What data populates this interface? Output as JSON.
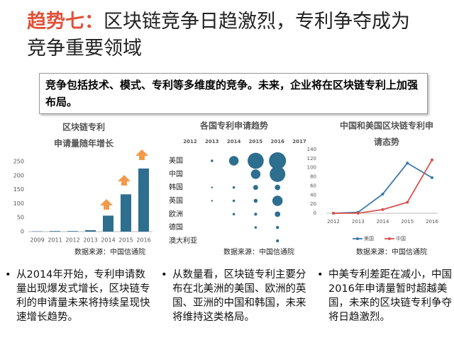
{
  "title_label": "趋势七：",
  "title": "区块链竞争日趋激烈，专利争夺成为竞争重要领域",
  "summary": "竞争包括技术、模式、专利等多维度的竞争。未来，企业将在区块链专利上加强布局。",
  "chart_data": [
    {
      "type": "bar",
      "title": [
        "区块链专利",
        "申请量随年增长"
      ],
      "categories": [
        "2009",
        "2011",
        "2012",
        "2013",
        "2014",
        "2015",
        "2016"
      ],
      "values": [
        1,
        2,
        2,
        5,
        57,
        133,
        225
      ],
      "color": "#2e6e8e",
      "ylim": [
        0,
        250
      ],
      "yticks": [
        0,
        50,
        100,
        150,
        200,
        250
      ],
      "source": "数据来源：中国信通院"
    },
    {
      "type": "bubble",
      "title": "各国专利申请趋势",
      "x": [
        2012,
        2013,
        2014,
        2015,
        2016
      ],
      "xlim": [
        2012,
        2017
      ],
      "xticks": [
        2012,
        2013,
        2014,
        2015,
        2016,
        2017
      ],
      "color": "#2e6e8e",
      "series": [
        {
          "name": "美国",
          "values": [
            null,
            2,
            30,
            85,
            95
          ]
        },
        {
          "name": "中国",
          "values": [
            null,
            null,
            null,
            30,
            80
          ]
        },
        {
          "name": "韩国",
          "values": [
            null,
            1,
            2,
            8,
            10
          ]
        },
        {
          "name": "英国",
          "values": [
            null,
            1,
            2,
            5,
            35
          ]
        },
        {
          "name": "欧洲",
          "values": [
            null,
            null,
            2,
            3,
            10
          ]
        },
        {
          "name": "德国",
          "values": [
            null,
            null,
            null,
            2,
            3
          ]
        },
        {
          "name": "澳大利亚",
          "values": [
            null,
            null,
            null,
            null,
            3
          ]
        }
      ],
      "source": "数据来源：中国信通院"
    },
    {
      "type": "line",
      "title": [
        "中国和美国区块链专利申",
        "请态势"
      ],
      "x": [
        2012,
        2013,
        2014,
        2015,
        2016
      ],
      "xlim": [
        2012,
        2016
      ],
      "xticks": [
        2012,
        2013,
        2014,
        2015,
        2016
      ],
      "ylim": [
        0,
        140
      ],
      "yticks": [
        0,
        20,
        40,
        60,
        80,
        100,
        120,
        140
      ],
      "series": [
        {
          "name": "美国",
          "color": "#3a78a8",
          "values": [
            0,
            2,
            42,
            110,
            78
          ]
        },
        {
          "name": "中国",
          "color": "#d9534f",
          "values": [
            0,
            0,
            8,
            24,
            117
          ]
        }
      ],
      "legend": "bottom",
      "source": "数据来源：中国信通院"
    }
  ],
  "bullets": [
    "从2014年开始，专利申请数量出现爆发式增长，区块链专利的申请量未来将持续呈现快速增长趋势。",
    "从数量看，区块链专利主要分布在北美洲的美国、欧洲的英国、亚洲的中国和韩国，未来将维持这类格局。",
    "中美专利差距在减小，中国2016年申请量暂时超越美国，未来的区块链专利争夺将日趋激烈。"
  ]
}
